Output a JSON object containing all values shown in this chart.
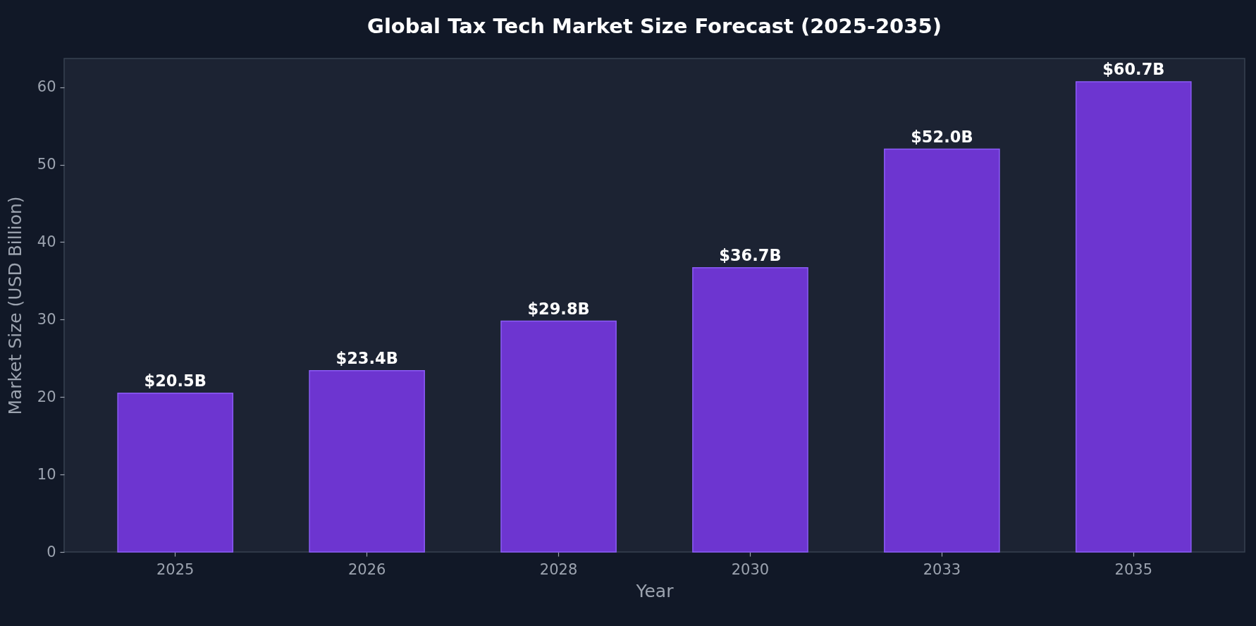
{
  "chart_data": {
    "type": "bar",
    "title": "Global Tax Tech Market Size Forecast (2025-2035)",
    "xlabel": "Year",
    "ylabel": "Market Size (USD Billion)",
    "categories": [
      "2025",
      "2026",
      "2028",
      "2030",
      "2033",
      "2035"
    ],
    "values": [
      20.5,
      23.4,
      29.8,
      36.7,
      52.0,
      60.7
    ],
    "value_labels": [
      "$20.5B",
      "$23.4B",
      "$29.8B",
      "$36.7B",
      "$52.0B",
      "$60.7B"
    ],
    "color": "#6d35d0",
    "ylim": [
      0,
      63.7
    ],
    "yticks": [
      0,
      10,
      20,
      30,
      40,
      50,
      60
    ]
  }
}
